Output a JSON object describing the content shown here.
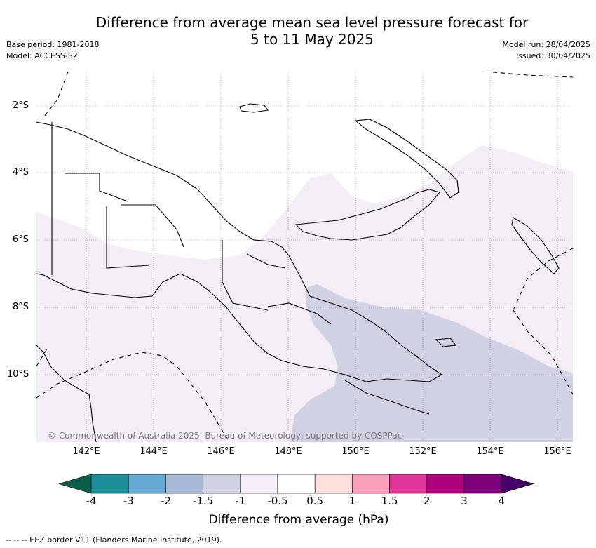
{
  "title": {
    "line1": "Difference from average mean sea level pressure forecast for",
    "line2": "5 to 11 May 2025"
  },
  "meta_left": {
    "base_period": "Base period: 1981-2018",
    "model": "Model: ACCESS-S2"
  },
  "meta_right": {
    "model_run": "Model run: 28/04/2025",
    "issued": "Issued: 30/04/2025"
  },
  "map": {
    "lat_labels": [
      "2°S",
      "4°S",
      "6°S",
      "8°S",
      "10°S"
    ],
    "lon_labels": [
      "142°E",
      "144°E",
      "146°E",
      "148°E",
      "150°E",
      "152°E",
      "154°E",
      "156°E"
    ],
    "copyright": "© Commonwealth of Australia 2025, Bureau of Meteorology, supported by COSPPac",
    "colors": {
      "land_outline": "#000000",
      "fill_neg05_neg1": "#f3edf5",
      "fill_neg1_neg15": "#d1d1e4",
      "gridline": "#7a7a7a"
    }
  },
  "colorbar": {
    "title": "Difference from average (hPa)",
    "ticks": [
      "-4",
      "-3",
      "-2",
      "-1.5",
      "-1",
      "-0.5",
      "0.5",
      "1",
      "1.5",
      "2",
      "3",
      "4"
    ],
    "colors": [
      "#0b6e5c",
      "#1b8e9a",
      "#66a9d2",
      "#a9b8d6",
      "#d1d1e4",
      "#f3edf5",
      "#ffffff",
      "#fde0dd",
      "#f99fb9",
      "#dd3497",
      "#ae017e",
      "#7a0177"
    ],
    "under_color": "#0a5e4a",
    "over_color": "#49006a"
  },
  "legend": {
    "eez": "--  --  -- EEZ border V11 (Flanders Marine Institute, 2019)."
  }
}
